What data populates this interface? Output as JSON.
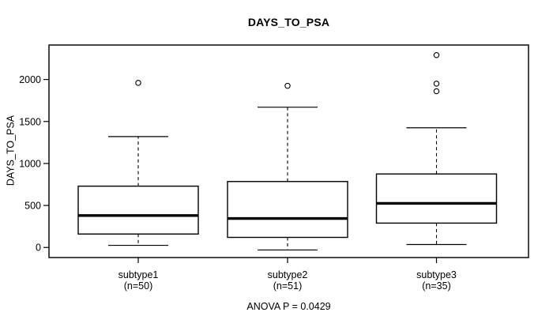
{
  "chart_data": {
    "type": "boxplot",
    "title": "DAYS_TO_PSA",
    "ylabel": "DAYS_TO_PSA",
    "xlabel": "",
    "annotation": "ANOVA P = 0.0429",
    "ylim": [
      -120,
      2410
    ],
    "yticks": [
      0,
      500,
      1000,
      1500,
      2000
    ],
    "grid": false,
    "categories": [
      "subtype1",
      "subtype2",
      "subtype3"
    ],
    "category_sublabels": [
      "(n=50)",
      "(n=51)",
      "(n=35)"
    ],
    "series": [
      {
        "name": "subtype1",
        "n": 50,
        "whisker_low": 25,
        "q1": 160,
        "median": 380,
        "q3": 730,
        "whisker_high": 1320,
        "outliers": [
          1960
        ]
      },
      {
        "name": "subtype2",
        "n": 51,
        "whisker_low": -30,
        "q1": 120,
        "median": 345,
        "q3": 785,
        "whisker_high": 1670,
        "outliers": [
          1925
        ]
      },
      {
        "name": "subtype3",
        "n": 35,
        "whisker_low": 35,
        "q1": 290,
        "median": 525,
        "q3": 875,
        "whisker_high": 1425,
        "outliers": [
          1860,
          1950,
          2290
        ]
      }
    ]
  },
  "colors": {
    "line": "#000000",
    "frame": "#1a1a1a",
    "background": "#ffffff",
    "box_fill": "#ffffff"
  }
}
